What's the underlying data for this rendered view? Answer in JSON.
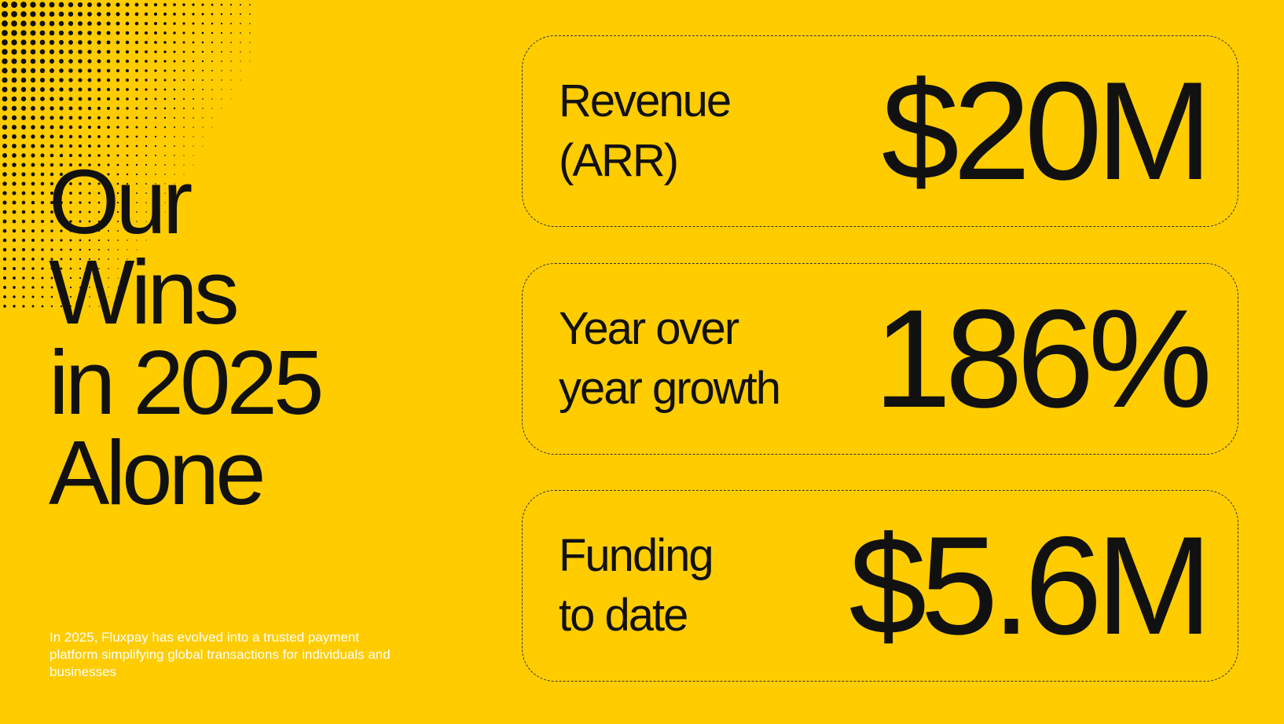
{
  "slide": {
    "background_color": "#ffcc00",
    "text_color": "#111111",
    "blurb_color": "#ffffff",
    "title_lines": [
      "Our",
      "Wins",
      "in 2025",
      "Alone"
    ],
    "blurb": "In 2025, Fluxpay has evolved into a trusted payment platform simplifying global transactions for individuals and businesses"
  },
  "cards": [
    {
      "label_lines": [
        "Revenue",
        "(ARR)"
      ],
      "value": "$20M"
    },
    {
      "label_lines": [
        "Year over",
        "year growth"
      ],
      "value": "186%"
    },
    {
      "label_lines": [
        "Funding",
        "to date"
      ],
      "value": "$5.6M"
    }
  ]
}
